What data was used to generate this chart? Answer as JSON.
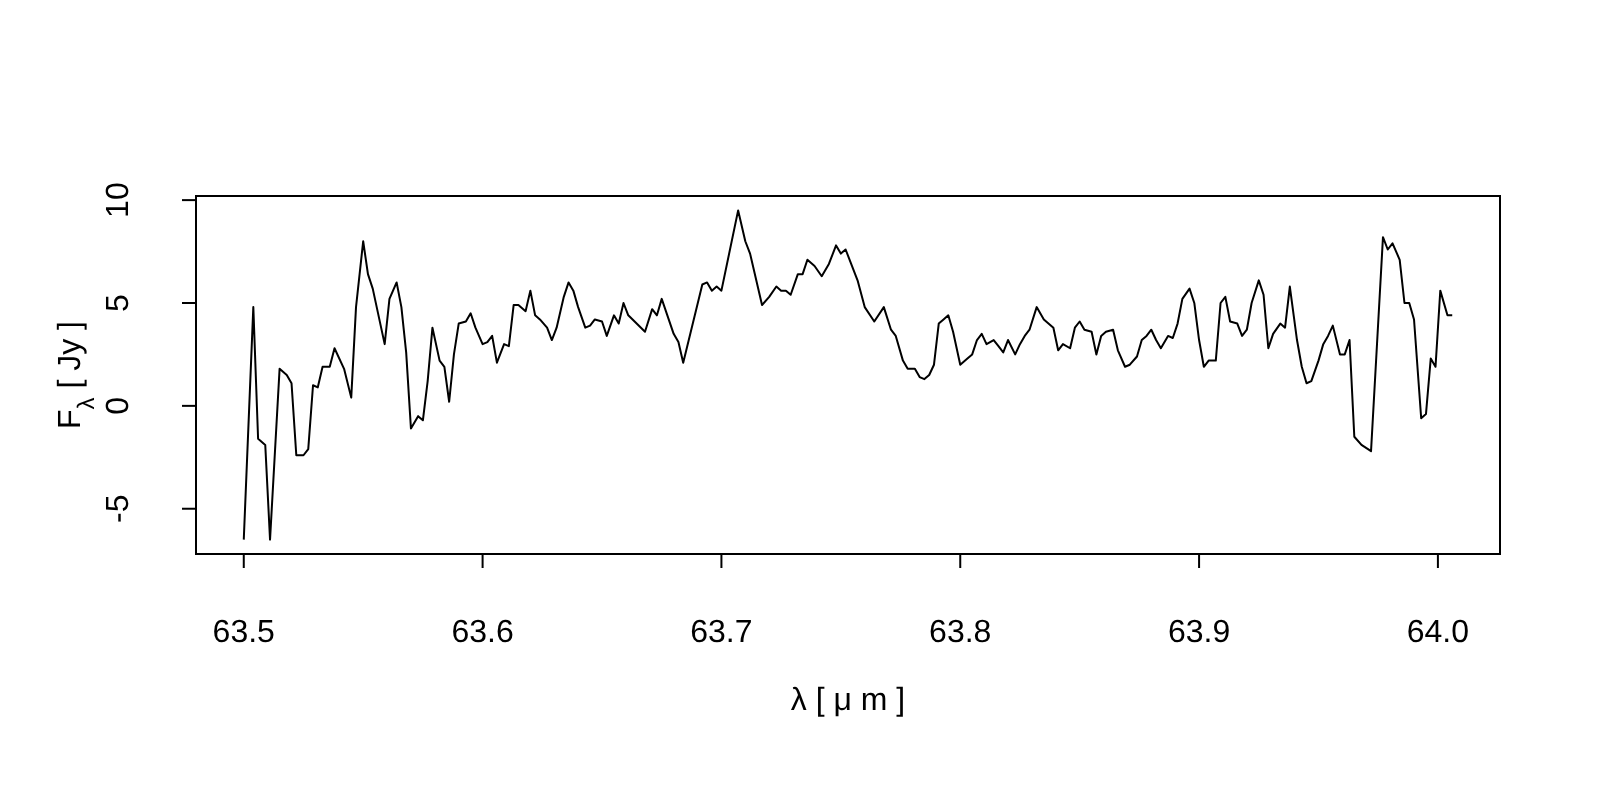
{
  "chart_data": {
    "type": "line",
    "xlabel": "λ [ μ m ]",
    "ylabel": "F$_{λ}$ [ Jy ]",
    "xlim": [
      63.48,
      64.026
    ],
    "ylim": [
      -7.2,
      10.2
    ],
    "xticks": [
      {
        "value": 63.5,
        "label": "63.5"
      },
      {
        "value": 63.6,
        "label": "63.6"
      },
      {
        "value": 63.7,
        "label": "63.7"
      },
      {
        "value": 63.8,
        "label": "63.8"
      },
      {
        "value": 63.9,
        "label": "63.9"
      },
      {
        "value": 64.0,
        "label": "64.0"
      }
    ],
    "yticks": [
      -5,
      0,
      5,
      10
    ],
    "grid": false,
    "marker": "none",
    "line_style": "solid",
    "series": [
      {
        "color": "#000000",
        "x": [
          63.5,
          63.504,
          63.506,
          63.509,
          63.511,
          63.515,
          63.518,
          63.52,
          63.522,
          63.525,
          63.527,
          63.529,
          63.531,
          63.533,
          63.536,
          63.538,
          63.542,
          63.545,
          63.547,
          63.55,
          63.552,
          63.554,
          63.559,
          63.561,
          63.564,
          63.566,
          63.568,
          63.57,
          63.573,
          63.575,
          63.577,
          63.579,
          63.582,
          63.584,
          63.586,
          63.588,
          63.59,
          63.593,
          63.595,
          63.597,
          63.6,
          63.602,
          63.604,
          63.606,
          63.609,
          63.611,
          63.613,
          63.615,
          63.618,
          63.62,
          63.622,
          63.624,
          63.627,
          63.629,
          63.631,
          63.634,
          63.636,
          63.638,
          63.64,
          63.643,
          63.645,
          63.647,
          63.65,
          63.652,
          63.655,
          63.657,
          63.659,
          63.661,
          63.668,
          63.671,
          63.673,
          63.675,
          63.68,
          63.682,
          63.684,
          63.692,
          63.694,
          63.696,
          63.698,
          63.7,
          63.707,
          63.71,
          63.712,
          63.717,
          63.72,
          63.723,
          63.725,
          63.727,
          63.729,
          63.732,
          63.734,
          63.736,
          63.739,
          63.742,
          63.745,
          63.748,
          63.75,
          63.752,
          63.757,
          63.76,
          63.764,
          63.768,
          63.771,
          63.773,
          63.776,
          63.778,
          63.781,
          63.783,
          63.785,
          63.787,
          63.789,
          63.791,
          63.793,
          63.795,
          63.797,
          63.8,
          63.803,
          63.805,
          63.807,
          63.809,
          63.811,
          63.814,
          63.816,
          63.818,
          63.82,
          63.823,
          63.825,
          63.827,
          63.829,
          63.832,
          63.835,
          63.839,
          63.841,
          63.843,
          63.846,
          63.848,
          63.85,
          63.852,
          63.855,
          63.857,
          63.859,
          63.861,
          63.864,
          63.866,
          63.869,
          63.871,
          63.874,
          63.876,
          63.878,
          63.88,
          63.882,
          63.884,
          63.887,
          63.889,
          63.891,
          63.893,
          63.896,
          63.898,
          63.9,
          63.902,
          63.904,
          63.907,
          63.909,
          63.911,
          63.913,
          63.916,
          63.918,
          63.92,
          63.922,
          63.925,
          63.927,
          63.929,
          63.931,
          63.934,
          63.936,
          63.938,
          63.941,
          63.943,
          63.945,
          63.947,
          63.95,
          63.952,
          63.954,
          63.956,
          63.959,
          63.961,
          63.963,
          63.965,
          63.968,
          63.972,
          63.977,
          63.979,
          63.981,
          63.984,
          63.986,
          63.988,
          63.99,
          63.993,
          63.995,
          63.997,
          63.999,
          64.001,
          64.004,
          64.006
        ],
        "values": [
          -6.5,
          4.8,
          -1.6,
          -1.9,
          -6.5,
          1.8,
          1.5,
          1.1,
          -2.4,
          -2.4,
          -2.1,
          1.0,
          0.9,
          1.9,
          1.9,
          2.8,
          1.8,
          0.4,
          4.8,
          8.0,
          6.4,
          5.7,
          3.0,
          5.2,
          6.0,
          4.8,
          2.6,
          -1.1,
          -0.5,
          -0.7,
          1.2,
          3.8,
          2.2,
          1.9,
          0.2,
          2.5,
          4.0,
          4.1,
          4.5,
          3.8,
          3.0,
          3.1,
          3.4,
          2.1,
          3.0,
          2.9,
          4.9,
          4.9,
          4.6,
          5.6,
          4.4,
          4.2,
          3.8,
          3.2,
          3.8,
          5.3,
          6.0,
          5.6,
          4.8,
          3.8,
          3.9,
          4.2,
          4.1,
          3.4,
          4.4,
          4.0,
          5.0,
          4.4,
          3.6,
          4.7,
          4.4,
          5.2,
          3.5,
          3.1,
          2.1,
          5.9,
          6.0,
          5.6,
          5.8,
          5.6,
          9.5,
          8.0,
          7.4,
          4.9,
          5.3,
          5.8,
          5.6,
          5.6,
          5.4,
          6.4,
          6.4,
          7.1,
          6.8,
          6.3,
          6.9,
          7.8,
          7.4,
          7.6,
          6.1,
          4.8,
          4.1,
          4.8,
          3.7,
          3.4,
          2.2,
          1.8,
          1.8,
          1.4,
          1.3,
          1.5,
          2.0,
          4.0,
          4.2,
          4.4,
          3.6,
          2.0,
          2.3,
          2.5,
          3.2,
          3.5,
          3.0,
          3.2,
          2.9,
          2.6,
          3.2,
          2.5,
          3.0,
          3.4,
          3.7,
          4.8,
          4.2,
          3.8,
          2.7,
          3.0,
          2.8,
          3.8,
          4.1,
          3.7,
          3.6,
          2.5,
          3.4,
          3.6,
          3.7,
          2.7,
          1.9,
          2.0,
          2.4,
          3.2,
          3.4,
          3.7,
          3.2,
          2.8,
          3.4,
          3.3,
          4.0,
          5.2,
          5.7,
          5.0,
          3.2,
          1.9,
          2.2,
          2.2,
          5.0,
          5.3,
          4.1,
          4.0,
          3.4,
          3.7,
          5.0,
          6.1,
          5.4,
          2.8,
          3.5,
          4.0,
          3.8,
          5.8,
          3.2,
          1.9,
          1.1,
          1.2,
          2.2,
          3.0,
          3.4,
          3.9,
          2.5,
          2.5,
          3.2,
          -1.5,
          -1.9,
          -2.2,
          8.2,
          7.6,
          7.9,
          7.1,
          5.0,
          5.0,
          4.2,
          -0.6,
          -0.4,
          2.3,
          1.9,
          5.6,
          4.4,
          4.4
        ]
      }
    ]
  }
}
